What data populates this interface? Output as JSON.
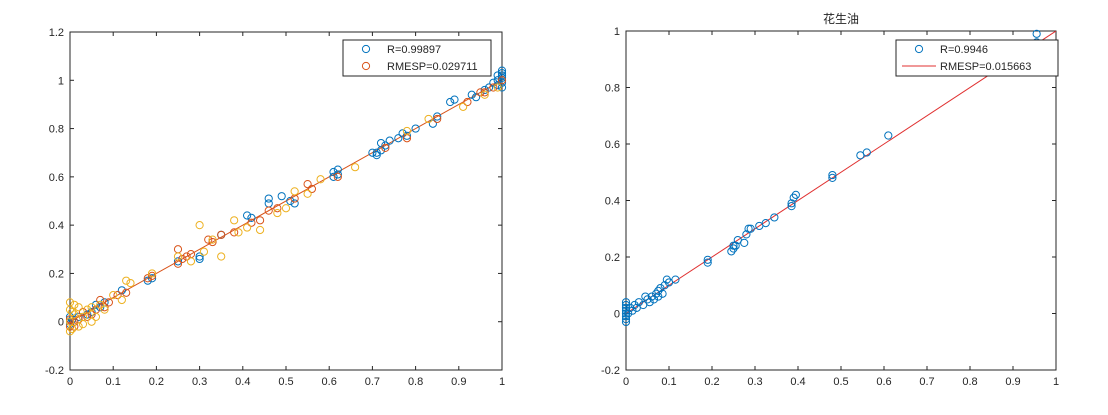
{
  "chart_data": [
    {
      "type": "scatter",
      "title": "",
      "xlabel": "",
      "ylabel": "",
      "xlim": [
        0,
        1
      ],
      "ylim": [
        -0.2,
        1.2
      ],
      "xticks": [
        "0",
        "0.1",
        "0.2",
        "0.3",
        "0.4",
        "0.5",
        "0.6",
        "0.7",
        "0.8",
        "0.9",
        "1"
      ],
      "yticks": [
        "-0.2",
        "0",
        "0.2",
        "0.4",
        "0.6",
        "0.8",
        "1",
        "1.2"
      ],
      "legend_position": "top-right",
      "legend": [
        {
          "label": "R=0.99897",
          "marker": "circle",
          "color": "#0072BD"
        },
        {
          "label": "RMESP=0.029711",
          "marker": "circle",
          "color": "#D95319"
        }
      ],
      "fit_line": {
        "x": [
          0,
          1
        ],
        "y": [
          0,
          1
        ],
        "color": "#D95319"
      },
      "series": [
        {
          "color": "#0072BD",
          "points": [
            [
              1,
              0.97
            ],
            [
              1,
              0.99
            ],
            [
              1,
              1.0
            ],
            [
              1,
              1.01
            ],
            [
              1,
              1.02
            ],
            [
              1,
              1.03
            ],
            [
              1,
              1.04
            ],
            [
              0.99,
              1.0
            ],
            [
              0.99,
              1.02
            ],
            [
              0.99,
              0.98
            ],
            [
              0.98,
              0.99
            ],
            [
              0.97,
              0.97
            ],
            [
              0.96,
              0.96
            ],
            [
              0.94,
              0.93
            ],
            [
              0.93,
              0.94
            ],
            [
              0.89,
              0.92
            ],
            [
              0.88,
              0.91
            ],
            [
              0.85,
              0.85
            ],
            [
              0.84,
              0.82
            ],
            [
              0.8,
              0.8
            ],
            [
              0.78,
              0.77
            ],
            [
              0.77,
              0.78
            ],
            [
              0.76,
              0.76
            ],
            [
              0.74,
              0.75
            ],
            [
              0.73,
              0.73
            ],
            [
              0.72,
              0.71
            ],
            [
              0.72,
              0.74
            ],
            [
              0.71,
              0.7
            ],
            [
              0.71,
              0.69
            ],
            [
              0.7,
              0.7
            ],
            [
              0.62,
              0.63
            ],
            [
              0.62,
              0.61
            ],
            [
              0.61,
              0.62
            ],
            [
              0.61,
              0.6
            ],
            [
              0.52,
              0.49
            ],
            [
              0.51,
              0.5
            ],
            [
              0.49,
              0.52
            ],
            [
              0.46,
              0.51
            ],
            [
              0.46,
              0.49
            ],
            [
              0.42,
              0.43
            ],
            [
              0.41,
              0.44
            ],
            [
              0.35,
              0.36
            ],
            [
              0.3,
              0.27
            ],
            [
              0.3,
              0.26
            ],
            [
              0.25,
              0.25
            ],
            [
              0.19,
              0.18
            ],
            [
              0.18,
              0.17
            ],
            [
              0.12,
              0.13
            ],
            [
              0.08,
              0.08
            ],
            [
              0.07,
              0.06
            ],
            [
              0.06,
              0.07
            ],
            [
              0.05,
              0.04
            ],
            [
              0.04,
              0.03
            ],
            [
              0.02,
              0.02
            ],
            [
              0.01,
              0.0
            ],
            [
              0.005,
              0.01
            ],
            [
              0,
              -0.01
            ],
            [
              0,
              0.02
            ]
          ]
        },
        {
          "color": "#D95319",
          "points": [
            [
              1,
              1.0
            ],
            [
              0.98,
              0.97
            ],
            [
              0.96,
              0.95
            ],
            [
              0.95,
              0.95
            ],
            [
              0.92,
              0.91
            ],
            [
              0.85,
              0.84
            ],
            [
              0.78,
              0.76
            ],
            [
              0.73,
              0.72
            ],
            [
              0.62,
              0.6
            ],
            [
              0.56,
              0.55
            ],
            [
              0.55,
              0.57
            ],
            [
              0.52,
              0.51
            ],
            [
              0.48,
              0.47
            ],
            [
              0.46,
              0.46
            ],
            [
              0.44,
              0.42
            ],
            [
              0.42,
              0.41
            ],
            [
              0.38,
              0.37
            ],
            [
              0.35,
              0.36
            ],
            [
              0.33,
              0.33
            ],
            [
              0.32,
              0.34
            ],
            [
              0.28,
              0.28
            ],
            [
              0.27,
              0.27
            ],
            [
              0.26,
              0.26
            ],
            [
              0.25,
              0.24
            ],
            [
              0.25,
              0.3
            ],
            [
              0.19,
              0.19
            ],
            [
              0.18,
              0.18
            ],
            [
              0.13,
              0.12
            ],
            [
              0.11,
              0.11
            ],
            [
              0.09,
              0.08
            ],
            [
              0.08,
              0.06
            ],
            [
              0.07,
              0.09
            ],
            [
              0.06,
              0.05
            ],
            [
              0.05,
              0.03
            ],
            [
              0.04,
              0.02
            ],
            [
              0.03,
              0.04
            ],
            [
              0.02,
              0.01
            ],
            [
              0.01,
              0.0
            ],
            [
              0.01,
              -0.02
            ],
            [
              0,
              0.01
            ],
            [
              0,
              -0.02
            ]
          ]
        },
        {
          "color": "#EDB120",
          "points": [
            [
              0.99,
              0.97
            ],
            [
              0.96,
              0.94
            ],
            [
              0.91,
              0.89
            ],
            [
              0.83,
              0.84
            ],
            [
              0.78,
              0.79
            ],
            [
              0.66,
              0.64
            ],
            [
              0.58,
              0.59
            ],
            [
              0.55,
              0.53
            ],
            [
              0.52,
              0.54
            ],
            [
              0.5,
              0.47
            ],
            [
              0.48,
              0.45
            ],
            [
              0.44,
              0.38
            ],
            [
              0.41,
              0.39
            ],
            [
              0.39,
              0.37
            ],
            [
              0.38,
              0.42
            ],
            [
              0.35,
              0.27
            ],
            [
              0.33,
              0.34
            ],
            [
              0.3,
              0.4
            ],
            [
              0.31,
              0.29
            ],
            [
              0.28,
              0.25
            ],
            [
              0.25,
              0.27
            ],
            [
              0.19,
              0.2
            ],
            [
              0.14,
              0.16
            ],
            [
              0.13,
              0.17
            ],
            [
              0.12,
              0.09
            ],
            [
              0.1,
              0.11
            ],
            [
              0.08,
              0.05
            ],
            [
              0.07,
              0.07
            ],
            [
              0.06,
              0.02
            ],
            [
              0.05,
              0.0
            ],
            [
              0.05,
              0.06
            ],
            [
              0.04,
              0.05
            ],
            [
              0.03,
              0.02
            ],
            [
              0.03,
              -0.01
            ],
            [
              0.02,
              0.06
            ],
            [
              0.02,
              -0.02
            ],
            [
              0.01,
              0.03
            ],
            [
              0.01,
              0.07
            ],
            [
              0.005,
              -0.03
            ],
            [
              0,
              0.05
            ],
            [
              0,
              0.0
            ],
            [
              0,
              -0.04
            ],
            [
              0,
              0.08
            ],
            [
              0.005,
              0.04
            ]
          ]
        }
      ]
    },
    {
      "type": "scatter",
      "title": "花生油",
      "xlabel": "",
      "ylabel": "",
      "xlim": [
        0,
        1
      ],
      "ylim": [
        -0.2,
        1
      ],
      "xticks": [
        "0",
        "0.1",
        "0.2",
        "0.3",
        "0.4",
        "0.5",
        "0.6",
        "0.7",
        "0.8",
        "0.9",
        "1"
      ],
      "yticks": [
        "-0.2",
        "0",
        "0.2",
        "0.4",
        "0.6",
        "0.8",
        "1"
      ],
      "legend_position": "top-right",
      "legend": [
        {
          "label": "R=0.9946",
          "marker": "circle",
          "color": "#0072BD"
        },
        {
          "label": "RMESP=0.015663",
          "marker": "line",
          "color": "#E03030"
        }
      ],
      "fit_line": {
        "x": [
          0,
          1
        ],
        "y": [
          0,
          1
        ],
        "color": "#E03030"
      },
      "series": [
        {
          "color": "#0072BD",
          "points": [
            [
              0.955,
              0.99
            ],
            [
              0.955,
              0.96
            ],
            [
              0.61,
              0.63
            ],
            [
              0.56,
              0.57
            ],
            [
              0.545,
              0.56
            ],
            [
              0.48,
              0.49
            ],
            [
              0.48,
              0.48
            ],
            [
              0.395,
              0.42
            ],
            [
              0.39,
              0.41
            ],
            [
              0.385,
              0.38
            ],
            [
              0.385,
              0.39
            ],
            [
              0.345,
              0.34
            ],
            [
              0.325,
              0.32
            ],
            [
              0.31,
              0.31
            ],
            [
              0.29,
              0.3
            ],
            [
              0.285,
              0.3
            ],
            [
              0.28,
              0.28
            ],
            [
              0.275,
              0.25
            ],
            [
              0.26,
              0.26
            ],
            [
              0.255,
              0.24
            ],
            [
              0.25,
              0.23
            ],
            [
              0.25,
              0.24
            ],
            [
              0.245,
              0.22
            ],
            [
              0.19,
              0.19
            ],
            [
              0.19,
              0.18
            ],
            [
              0.115,
              0.12
            ],
            [
              0.1,
              0.11
            ],
            [
              0.095,
              0.12
            ],
            [
              0.09,
              0.1
            ],
            [
              0.085,
              0.07
            ],
            [
              0.08,
              0.09
            ],
            [
              0.075,
              0.08
            ],
            [
              0.075,
              0.06
            ],
            [
              0.07,
              0.07
            ],
            [
              0.065,
              0.05
            ],
            [
              0.06,
              0.06
            ],
            [
              0.055,
              0.04
            ],
            [
              0.05,
              0.05
            ],
            [
              0.045,
              0.06
            ],
            [
              0.04,
              0.03
            ],
            [
              0.03,
              0.04
            ],
            [
              0.025,
              0.02
            ],
            [
              0.02,
              0.03
            ],
            [
              0.015,
              0.01
            ],
            [
              0,
              0.04
            ],
            [
              0,
              0.03
            ],
            [
              0,
              0.02
            ],
            [
              0,
              0.01
            ],
            [
              0,
              0.0
            ],
            [
              0,
              -0.01
            ],
            [
              0,
              -0.02
            ],
            [
              0,
              -0.03
            ],
            [
              0.005,
              0.0
            ],
            [
              0.01,
              0.02
            ]
          ]
        }
      ]
    }
  ]
}
